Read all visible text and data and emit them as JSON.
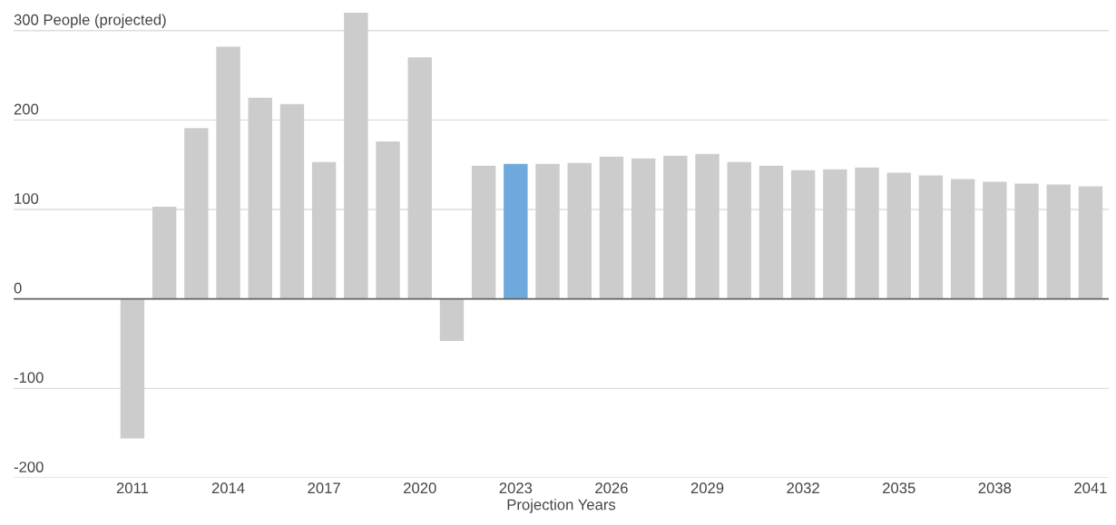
{
  "chart_data": {
    "type": "bar",
    "xlabel": "Projection Years",
    "categories": [
      "2011",
      null,
      null,
      "2014",
      null,
      null,
      "2017",
      null,
      null,
      "2020",
      null,
      null,
      "2023",
      null,
      null,
      "2026",
      null,
      null,
      "2029",
      null,
      null,
      "2032",
      null,
      null,
      "2035",
      null,
      null,
      "2038",
      null,
      null,
      "2041"
    ],
    "values": [
      -156,
      103,
      191,
      282,
      225,
      218,
      153,
      320,
      176,
      270,
      -47,
      149,
      151,
      151,
      152,
      159,
      157,
      160,
      162,
      153,
      149,
      144,
      145,
      147,
      141,
      138,
      134,
      131,
      129,
      128,
      126
    ],
    "colors": [
      "#cccccc",
      "#cccccc",
      "#cccccc",
      "#cccccc",
      "#cccccc",
      "#cccccc",
      "#cccccc",
      "#cccccc",
      "#cccccc",
      "#cccccc",
      "#cccccc",
      "#cccccc",
      "#6fa8dc",
      "#cccccc",
      "#cccccc",
      "#cccccc",
      "#cccccc",
      "#cccccc",
      "#cccccc",
      "#cccccc",
      "#cccccc",
      "#cccccc",
      "#cccccc",
      "#cccccc",
      "#cccccc",
      "#cccccc",
      "#cccccc",
      "#cccccc",
      "#cccccc",
      "#cccccc",
      "#cccccc"
    ],
    "ylim": [
      -200,
      320
    ],
    "yticks": [
      -200,
      -100,
      0,
      100,
      200,
      {
        "value": 300,
        "label": "300 People (projected)"
      }
    ],
    "ref_lines": [
      {
        "axis": "y",
        "value": 0,
        "color": "#666666"
      }
    ],
    "grid": "y",
    "legend": false
  }
}
